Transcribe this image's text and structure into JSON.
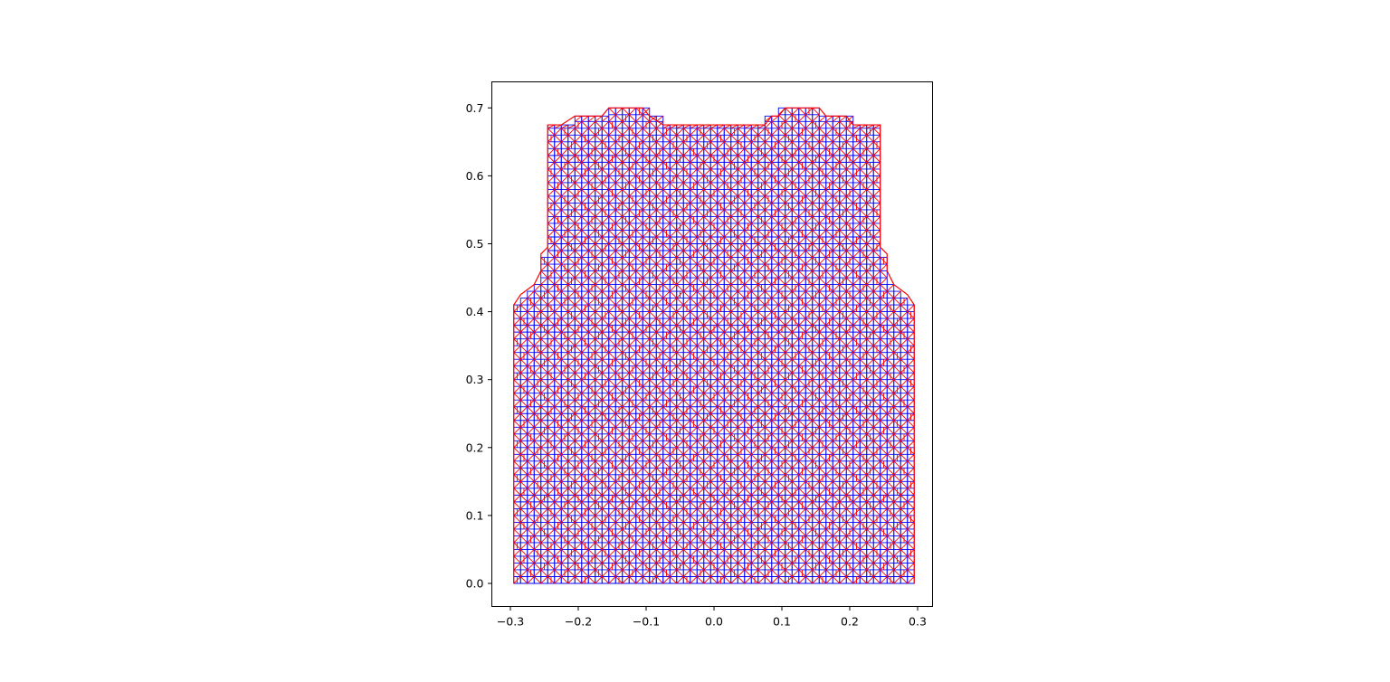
{
  "chart_data": {
    "type": "mesh",
    "title": "",
    "xlabel": "",
    "ylabel": "",
    "xlim": [
      -0.3,
      0.3
    ],
    "ylim": [
      -0.035,
      0.735
    ],
    "xticks": [
      -0.3,
      -0.2,
      -0.1,
      0.0,
      0.1,
      0.2,
      0.3
    ],
    "xtick_labels": [
      "−0.3",
      "−0.2",
      "−0.1",
      "0.0",
      "0.1",
      "0.2",
      "0.3"
    ],
    "yticks": [
      0.0,
      0.1,
      0.2,
      0.3,
      0.4,
      0.5,
      0.6,
      0.7
    ],
    "ytick_labels": [
      "0.0",
      "0.1",
      "0.2",
      "0.3",
      "0.4",
      "0.5",
      "0.6",
      "0.7"
    ],
    "grid": false,
    "aspect": "equal",
    "mesh": {
      "cell_size": 0.01,
      "grid_color": "#0000ff",
      "diagonal_color": "#ff0000",
      "boundary_color": "#ff0000",
      "columns": [
        {
          "x0": -0.295,
          "x1": -0.285,
          "top": 0.41
        },
        {
          "x0": -0.285,
          "x1": -0.275,
          "top": 0.42
        },
        {
          "x0": -0.275,
          "x1": -0.265,
          "top": 0.43
        },
        {
          "x0": -0.265,
          "x1": -0.255,
          "top": 0.44
        },
        {
          "x0": -0.255,
          "x1": -0.245,
          "top": 0.48
        },
        {
          "x0": -0.245,
          "x1": -0.235,
          "top": 0.675
        },
        {
          "x0": -0.235,
          "x1": -0.225,
          "top": 0.675
        },
        {
          "x0": -0.225,
          "x1": -0.215,
          "top": 0.675
        },
        {
          "x0": -0.215,
          "x1": -0.205,
          "top": 0.675
        },
        {
          "x0": -0.205,
          "x1": -0.195,
          "top": 0.688
        },
        {
          "x0": -0.195,
          "x1": -0.185,
          "top": 0.688
        },
        {
          "x0": -0.185,
          "x1": -0.175,
          "top": 0.688
        },
        {
          "x0": -0.175,
          "x1": -0.165,
          "top": 0.688
        },
        {
          "x0": -0.165,
          "x1": -0.155,
          "top": 0.688
        },
        {
          "x0": -0.155,
          "x1": -0.145,
          "top": 0.7
        },
        {
          "x0": -0.145,
          "x1": -0.135,
          "top": 0.7
        },
        {
          "x0": -0.135,
          "x1": -0.125,
          "top": 0.7
        },
        {
          "x0": -0.125,
          "x1": -0.115,
          "top": 0.7
        },
        {
          "x0": -0.115,
          "x1": -0.105,
          "top": 0.7
        },
        {
          "x0": -0.105,
          "x1": -0.095,
          "top": 0.7
        },
        {
          "x0": -0.095,
          "x1": -0.085,
          "top": 0.688
        },
        {
          "x0": -0.085,
          "x1": -0.075,
          "top": 0.688
        },
        {
          "x0": -0.075,
          "x1": -0.065,
          "top": 0.675
        },
        {
          "x0": -0.065,
          "x1": -0.055,
          "top": 0.675
        },
        {
          "x0": -0.055,
          "x1": -0.045,
          "top": 0.675
        },
        {
          "x0": -0.045,
          "x1": -0.035,
          "top": 0.675
        },
        {
          "x0": -0.035,
          "x1": -0.025,
          "top": 0.675
        },
        {
          "x0": -0.025,
          "x1": -0.015,
          "top": 0.675
        },
        {
          "x0": -0.015,
          "x1": -0.005,
          "top": 0.675
        },
        {
          "x0": -0.005,
          "x1": 0.005,
          "top": 0.675
        },
        {
          "x0": 0.005,
          "x1": 0.015,
          "top": 0.675
        },
        {
          "x0": 0.015,
          "x1": 0.025,
          "top": 0.675
        },
        {
          "x0": 0.025,
          "x1": 0.035,
          "top": 0.675
        },
        {
          "x0": 0.035,
          "x1": 0.045,
          "top": 0.675
        },
        {
          "x0": 0.045,
          "x1": 0.055,
          "top": 0.675
        },
        {
          "x0": 0.055,
          "x1": 0.065,
          "top": 0.675
        },
        {
          "x0": 0.065,
          "x1": 0.075,
          "top": 0.675
        },
        {
          "x0": 0.075,
          "x1": 0.085,
          "top": 0.688
        },
        {
          "x0": 0.085,
          "x1": 0.095,
          "top": 0.688
        },
        {
          "x0": 0.095,
          "x1": 0.105,
          "top": 0.7
        },
        {
          "x0": 0.105,
          "x1": 0.115,
          "top": 0.7
        },
        {
          "x0": 0.115,
          "x1": 0.125,
          "top": 0.7
        },
        {
          "x0": 0.125,
          "x1": 0.135,
          "top": 0.7
        },
        {
          "x0": 0.135,
          "x1": 0.145,
          "top": 0.7
        },
        {
          "x0": 0.145,
          "x1": 0.155,
          "top": 0.7
        },
        {
          "x0": 0.155,
          "x1": 0.165,
          "top": 0.688
        },
        {
          "x0": 0.165,
          "x1": 0.175,
          "top": 0.688
        },
        {
          "x0": 0.175,
          "x1": 0.185,
          "top": 0.688
        },
        {
          "x0": 0.185,
          "x1": 0.195,
          "top": 0.688
        },
        {
          "x0": 0.195,
          "x1": 0.205,
          "top": 0.688
        },
        {
          "x0": 0.205,
          "x1": 0.215,
          "top": 0.675
        },
        {
          "x0": 0.215,
          "x1": 0.225,
          "top": 0.675
        },
        {
          "x0": 0.225,
          "x1": 0.235,
          "top": 0.675
        },
        {
          "x0": 0.235,
          "x1": 0.245,
          "top": 0.675
        },
        {
          "x0": 0.245,
          "x1": 0.255,
          "top": 0.48
        },
        {
          "x0": 0.255,
          "x1": 0.265,
          "top": 0.44
        },
        {
          "x0": 0.265,
          "x1": 0.275,
          "top": 0.43
        },
        {
          "x0": 0.275,
          "x1": 0.285,
          "top": 0.42
        },
        {
          "x0": 0.285,
          "x1": 0.295,
          "top": 0.41
        }
      ],
      "boundary": [
        [
          -0.295,
          0.0
        ],
        [
          -0.295,
          0.41
        ],
        [
          -0.285,
          0.425
        ],
        [
          -0.265,
          0.44
        ],
        [
          -0.255,
          0.46
        ],
        [
          -0.255,
          0.485
        ],
        [
          -0.245,
          0.495
        ],
        [
          -0.245,
          0.675
        ],
        [
          -0.225,
          0.675
        ],
        [
          -0.205,
          0.688
        ],
        [
          -0.165,
          0.688
        ],
        [
          -0.155,
          0.7
        ],
        [
          -0.105,
          0.7
        ],
        [
          -0.095,
          0.688
        ],
        [
          -0.075,
          0.675
        ],
        [
          0.075,
          0.675
        ],
        [
          0.085,
          0.688
        ],
        [
          0.095,
          0.688
        ],
        [
          0.105,
          0.7
        ],
        [
          0.155,
          0.7
        ],
        [
          0.165,
          0.688
        ],
        [
          0.195,
          0.688
        ],
        [
          0.205,
          0.675
        ],
        [
          0.245,
          0.675
        ],
        [
          0.245,
          0.495
        ],
        [
          0.255,
          0.485
        ],
        [
          0.255,
          0.46
        ],
        [
          0.265,
          0.44
        ],
        [
          0.285,
          0.425
        ],
        [
          0.295,
          0.41
        ],
        [
          0.295,
          0.0
        ]
      ]
    }
  }
}
